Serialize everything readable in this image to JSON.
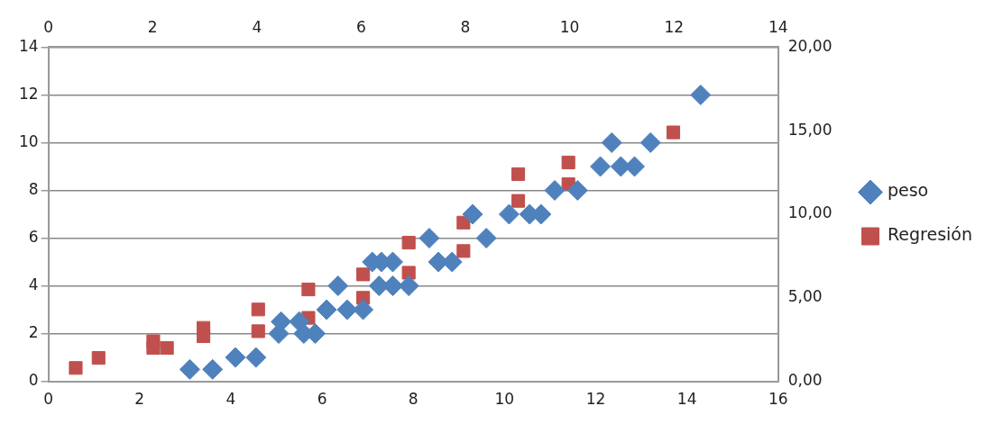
{
  "chart_data": {
    "type": "scatter",
    "xlim": [
      0,
      16
    ],
    "xticks": [
      0,
      2,
      4,
      6,
      8,
      10,
      12,
      14,
      16
    ],
    "ylim": [
      0,
      14
    ],
    "yticks": [
      0,
      2,
      4,
      6,
      8,
      10,
      12,
      14
    ],
    "x2lim": [
      0,
      14
    ],
    "x2ticks": [
      0,
      2,
      4,
      6,
      8,
      10,
      12,
      14
    ],
    "y2lim": [
      0,
      20
    ],
    "y2ticks": [
      {
        "value": 0,
        "label": "0,00"
      },
      {
        "value": 5,
        "label": "5,00"
      },
      {
        "value": 10,
        "label": "10,00"
      },
      {
        "value": 15,
        "label": "15,00"
      },
      {
        "value": 20,
        "label": "20,00"
      }
    ],
    "grid": "y",
    "legend": "right",
    "series": [
      {
        "name": "peso",
        "color": "#4f81bd",
        "marker": "diamond",
        "x": [
          3.1,
          3.6,
          4.1,
          4.55,
          5.05,
          5.1,
          5.5,
          5.6,
          5.85,
          6.1,
          6.35,
          6.55,
          6.9,
          7.1,
          7.25,
          7.3,
          7.55,
          7.55,
          7.9,
          8.35,
          8.55,
          8.85,
          9.3,
          9.6,
          10.1,
          10.55,
          10.8,
          11.1,
          11.6,
          12.1,
          12.35,
          12.55,
          12.85,
          13.2,
          14.3
        ],
        "values": [
          0.5,
          0.5,
          1,
          1,
          2,
          2.5,
          2.5,
          2,
          2,
          3,
          4,
          3,
          3,
          5,
          4,
          5,
          5,
          4,
          4,
          6,
          5,
          5,
          7,
          6,
          7,
          7,
          7,
          8,
          8,
          9,
          10,
          9,
          9,
          10,
          12
        ]
      },
      {
        "name": "Regresión",
        "color": "#c0504d",
        "marker": "square",
        "axis": "y2",
        "x": [
          0.6,
          1.1,
          2.3,
          2.3,
          2.6,
          3.4,
          3.4,
          4.6,
          4.6,
          5.7,
          5.7,
          6.9,
          6.9,
          7.9,
          7.9,
          9.1,
          9.1,
          10.3,
          10.3,
          11.4,
          11.4,
          13.7
        ],
        "values": [
          0.8,
          1.4,
          2.4,
          2,
          2,
          3.2,
          2.7,
          4.3,
          3,
          5.5,
          3.8,
          6.4,
          5,
          8.3,
          6.5,
          9.5,
          7.8,
          12.4,
          10.8,
          13.1,
          11.8,
          14.9
        ]
      }
    ]
  }
}
